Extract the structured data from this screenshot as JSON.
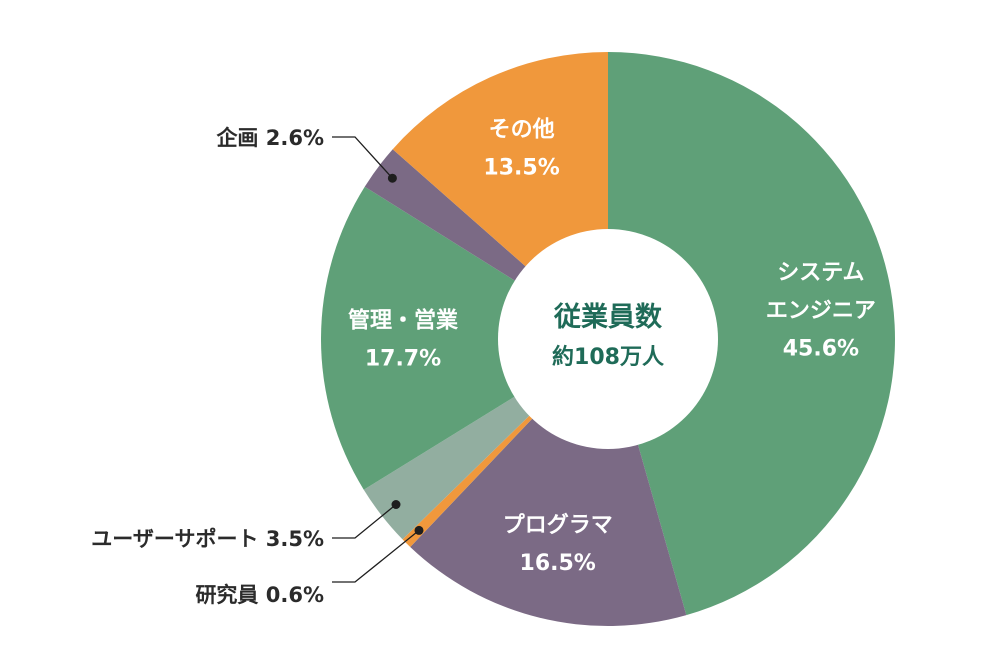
{
  "chart_data": {
    "type": "pie",
    "center_title": "従業員数",
    "center_subtitle": "約108万人",
    "slices": [
      {
        "name": "システムエンジニア",
        "label_lines": [
          "システム",
          "エンジニア"
        ],
        "value": 45.6,
        "value_label": "45.6%",
        "color": "#5fa078",
        "label_position": "inside"
      },
      {
        "name": "プログラマ",
        "label_lines": [
          "プログラマ"
        ],
        "value": 16.5,
        "value_label": "16.5%",
        "color": "#7b6a85",
        "label_position": "inside"
      },
      {
        "name": "研究員",
        "label_lines": [
          "研究員"
        ],
        "value": 0.6,
        "value_label": "0.6%",
        "color": "#f0983c",
        "label_position": "outside"
      },
      {
        "name": "ユーザーサポート",
        "label_lines": [
          "ユーザーサポート"
        ],
        "value": 3.5,
        "value_label": "3.5%",
        "color": "#92aea0",
        "label_position": "outside"
      },
      {
        "name": "管理・営業",
        "label_lines": [
          "管理・営業"
        ],
        "value": 17.7,
        "value_label": "17.7%",
        "color": "#5fa078",
        "label_position": "inside"
      },
      {
        "name": "企画",
        "label_lines": [
          "企画"
        ],
        "value": 2.6,
        "value_label": "2.6%",
        "color": "#7b6a85",
        "label_position": "outside"
      },
      {
        "name": "その他",
        "label_lines": [
          "その他"
        ],
        "value": 13.5,
        "value_label": "13.5%",
        "color": "#f0983c",
        "label_position": "inside"
      }
    ]
  }
}
